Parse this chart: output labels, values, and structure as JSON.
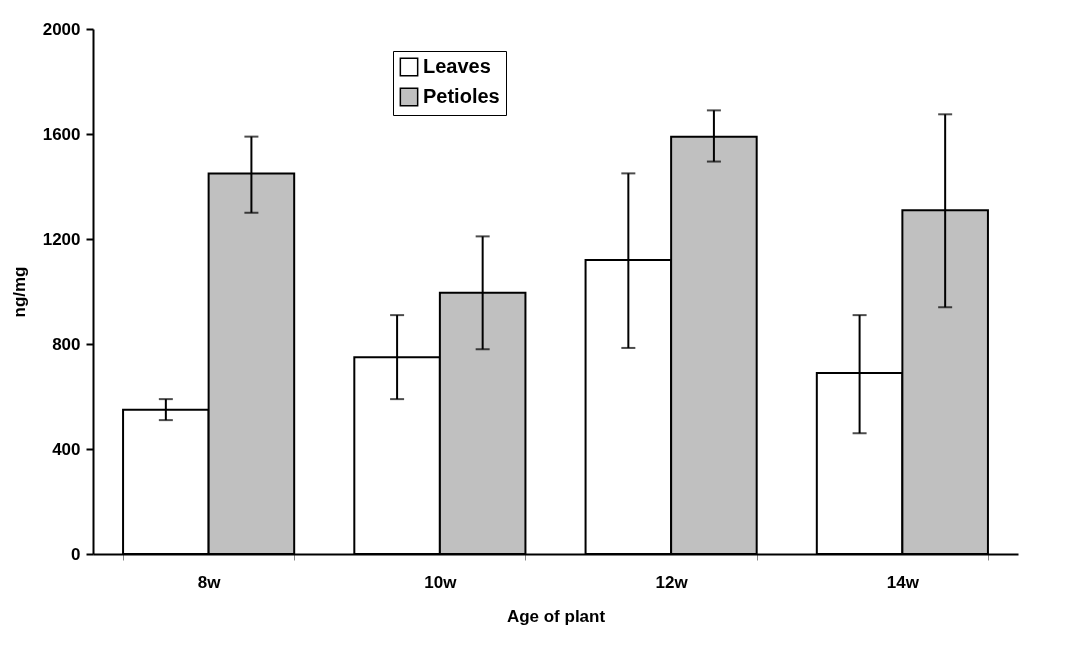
{
  "chart_data": {
    "type": "bar",
    "xlabel": "Age of plant",
    "ylabel": "ng/mg",
    "categories": [
      "8w",
      "10w",
      "12w",
      "14w"
    ],
    "series": [
      {
        "name": "Leaves",
        "color": "#ffffff",
        "values": [
          550,
          750,
          1120,
          690
        ],
        "errors": [
          [
            510,
            590
          ],
          [
            590,
            910
          ],
          [
            785,
            1450
          ],
          [
            460,
            910
          ]
        ]
      },
      {
        "name": "Petioles",
        "color": "#c0c0c0",
        "values": [
          1450,
          995,
          1590,
          1310
        ],
        "errors": [
          [
            1300,
            1590
          ],
          [
            780,
            1210
          ],
          [
            1495,
            1690
          ],
          [
            940,
            1675
          ]
        ]
      }
    ],
    "ylim": [
      0,
      2000
    ],
    "yticks": [
      0,
      400,
      800,
      1200,
      1600,
      2000
    ],
    "grid": false,
    "legend": "top"
  }
}
